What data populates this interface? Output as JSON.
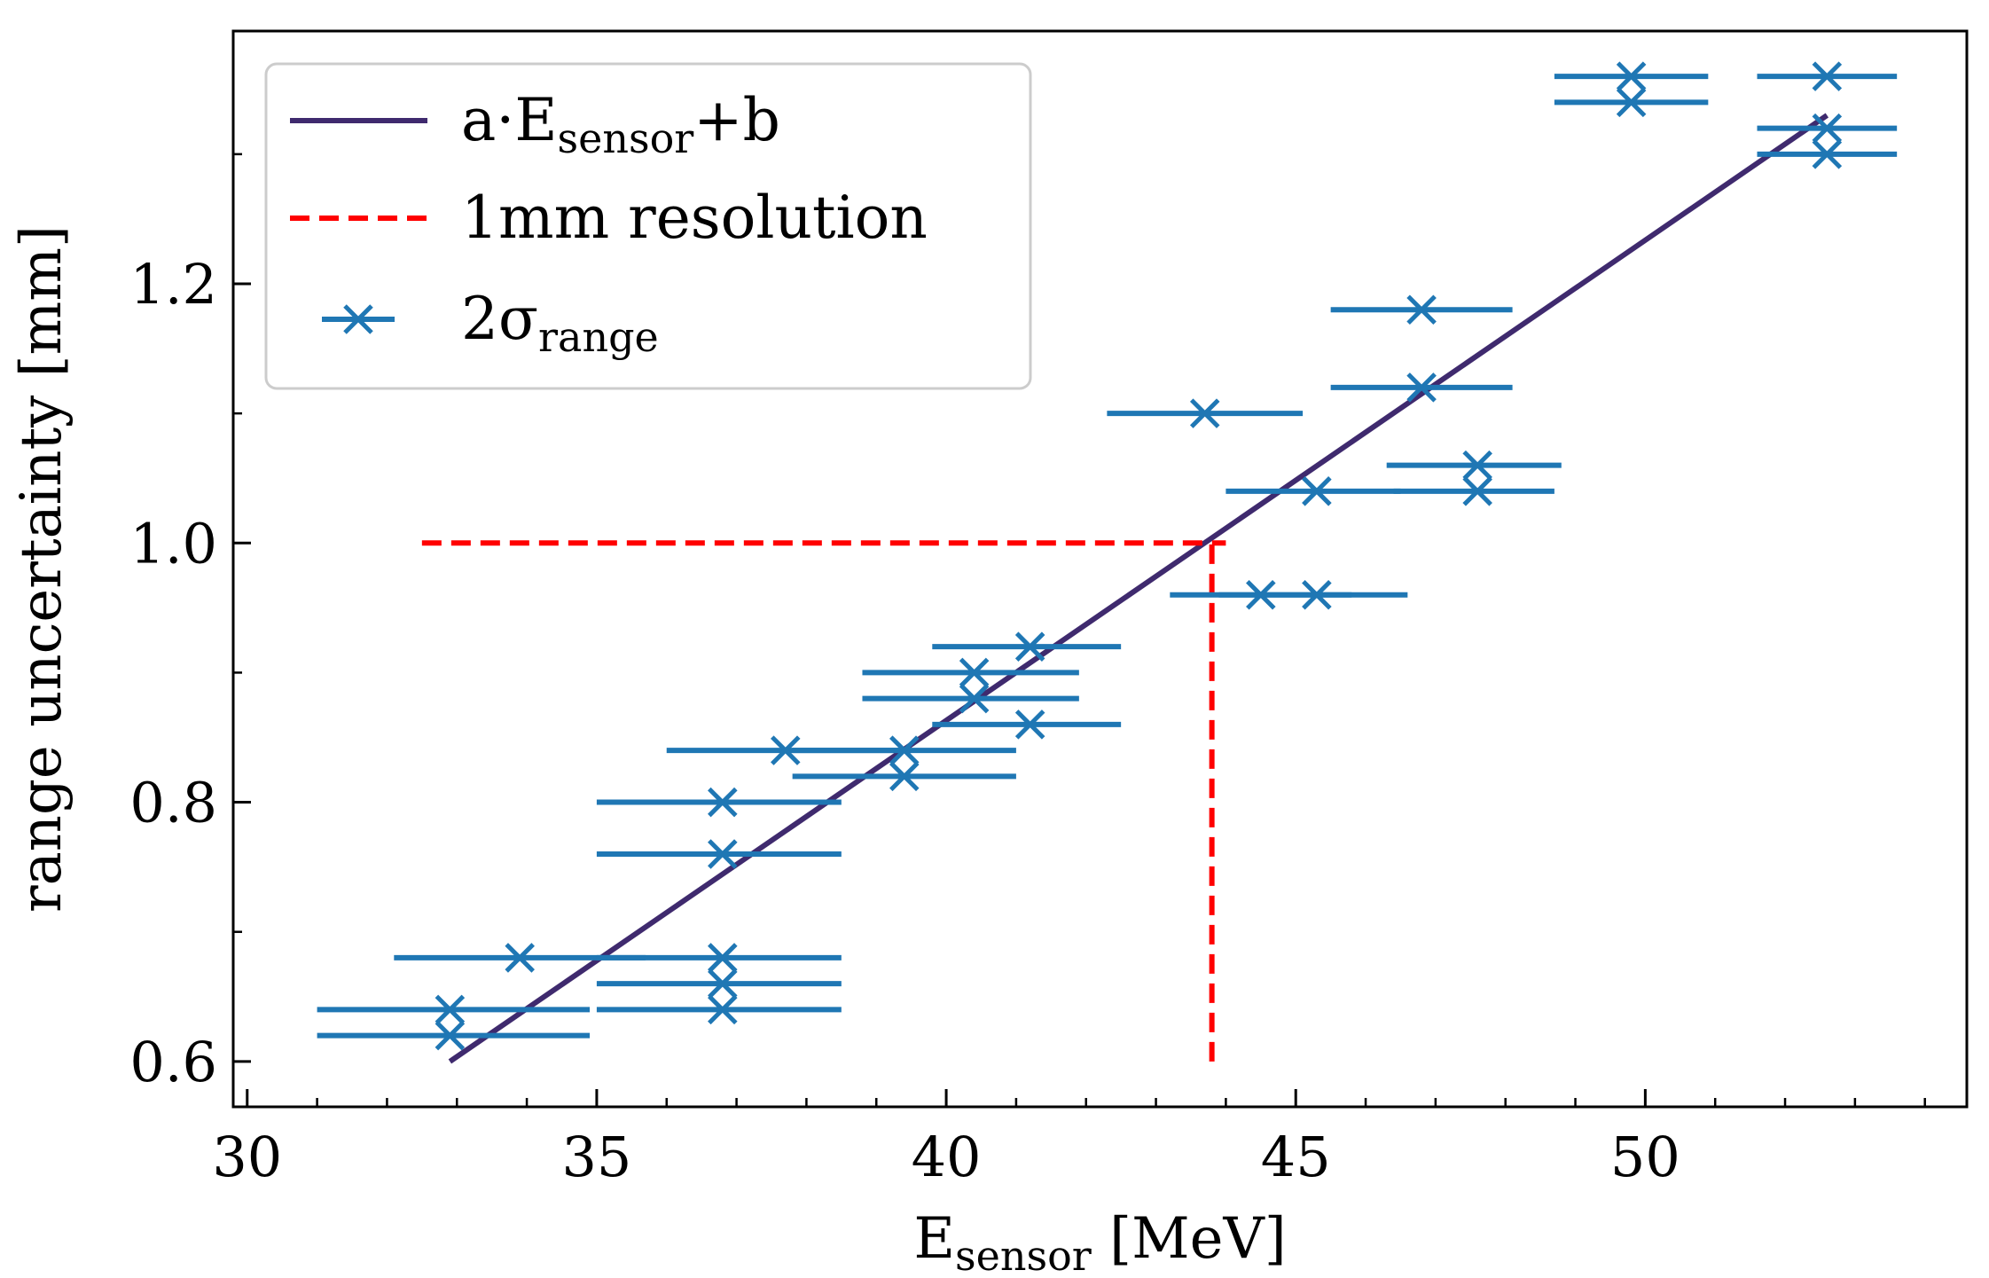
{
  "chart_data": {
    "type": "scatter",
    "xlabel": {
      "main": "E",
      "sub": "sensor",
      "rest": " [MeV]"
    },
    "ylabel": "range uncertainty [mm]",
    "xlim": [
      29.8,
      54.6
    ],
    "ylim": [
      0.565,
      1.395
    ],
    "xticks": [
      30,
      35,
      40,
      45,
      50
    ],
    "xtick_labels": [
      "30",
      "35",
      "40",
      "45",
      "50"
    ],
    "yticks": [
      0.6,
      0.8,
      1.0,
      1.2
    ],
    "ytick_labels": [
      "0.6",
      "0.8",
      "1.0",
      "1.2"
    ],
    "x_minor_step": 1,
    "y_minor_step": 0.1,
    "grid": false,
    "legend_position": "top-left",
    "colors": {
      "fit": "#3f2a6e",
      "resolution": "#ff0000",
      "points": "#1f77b4"
    },
    "fit_line": {
      "legend": {
        "pre": "a·E",
        "sub": "sensor",
        "post": "+b"
      },
      "x": [
        32.9,
        52.6
      ],
      "y": [
        0.6,
        1.33
      ]
    },
    "resolution_line": {
      "legend": "1mm resolution",
      "horizontal": {
        "x": [
          32.5,
          44.0
        ],
        "y": 1.0
      },
      "vertical": {
        "x": 43.8,
        "y": [
          0.6,
          1.0
        ]
      }
    },
    "points": {
      "legend": {
        "pre": "2σ",
        "sub": "range"
      },
      "data": [
        {
          "x": 32.9,
          "y": 0.64,
          "xmin": 31.0,
          "xmax": 34.9
        },
        {
          "x": 32.9,
          "y": 0.62,
          "xmin": 31.0,
          "xmax": 34.9
        },
        {
          "x": 33.9,
          "y": 0.68,
          "xmin": 32.1,
          "xmax": 35.7
        },
        {
          "x": 36.8,
          "y": 0.68,
          "xmin": 35.0,
          "xmax": 38.5
        },
        {
          "x": 36.8,
          "y": 0.66,
          "xmin": 35.0,
          "xmax": 38.5
        },
        {
          "x": 36.8,
          "y": 0.64,
          "xmin": 35.0,
          "xmax": 38.5
        },
        {
          "x": 36.8,
          "y": 0.8,
          "xmin": 35.0,
          "xmax": 38.5
        },
        {
          "x": 36.8,
          "y": 0.76,
          "xmin": 35.0,
          "xmax": 38.5
        },
        {
          "x": 37.7,
          "y": 0.84,
          "xmin": 36.0,
          "xmax": 39.5
        },
        {
          "x": 39.4,
          "y": 0.84,
          "xmin": 37.8,
          "xmax": 41.0
        },
        {
          "x": 39.4,
          "y": 0.82,
          "xmin": 37.8,
          "xmax": 41.0
        },
        {
          "x": 40.4,
          "y": 0.9,
          "xmin": 38.8,
          "xmax": 41.9
        },
        {
          "x": 40.4,
          "y": 0.88,
          "xmin": 38.8,
          "xmax": 41.9
        },
        {
          "x": 41.2,
          "y": 0.92,
          "xmin": 39.8,
          "xmax": 42.5
        },
        {
          "x": 41.2,
          "y": 0.86,
          "xmin": 39.8,
          "xmax": 42.5
        },
        {
          "x": 43.7,
          "y": 1.1,
          "xmin": 42.3,
          "xmax": 45.1
        },
        {
          "x": 44.5,
          "y": 0.96,
          "xmin": 43.2,
          "xmax": 45.8
        },
        {
          "x": 45.3,
          "y": 0.96,
          "xmin": 43.9,
          "xmax": 46.6
        },
        {
          "x": 45.3,
          "y": 1.04,
          "xmin": 44.0,
          "xmax": 46.5
        },
        {
          "x": 46.8,
          "y": 1.18,
          "xmin": 45.5,
          "xmax": 48.1
        },
        {
          "x": 46.8,
          "y": 1.12,
          "xmin": 45.5,
          "xmax": 48.1
        },
        {
          "x": 47.6,
          "y": 1.06,
          "xmin": 46.3,
          "xmax": 48.8
        },
        {
          "x": 47.6,
          "y": 1.04,
          "xmin": 46.4,
          "xmax": 48.7
        },
        {
          "x": 49.8,
          "y": 1.36,
          "xmin": 48.7,
          "xmax": 50.9
        },
        {
          "x": 49.8,
          "y": 1.34,
          "xmin": 48.7,
          "xmax": 50.9
        },
        {
          "x": 52.6,
          "y": 1.36,
          "xmin": 51.6,
          "xmax": 53.6
        },
        {
          "x": 52.6,
          "y": 1.32,
          "xmin": 51.6,
          "xmax": 53.6
        },
        {
          "x": 52.6,
          "y": 1.3,
          "xmin": 51.6,
          "xmax": 53.6
        }
      ]
    }
  }
}
